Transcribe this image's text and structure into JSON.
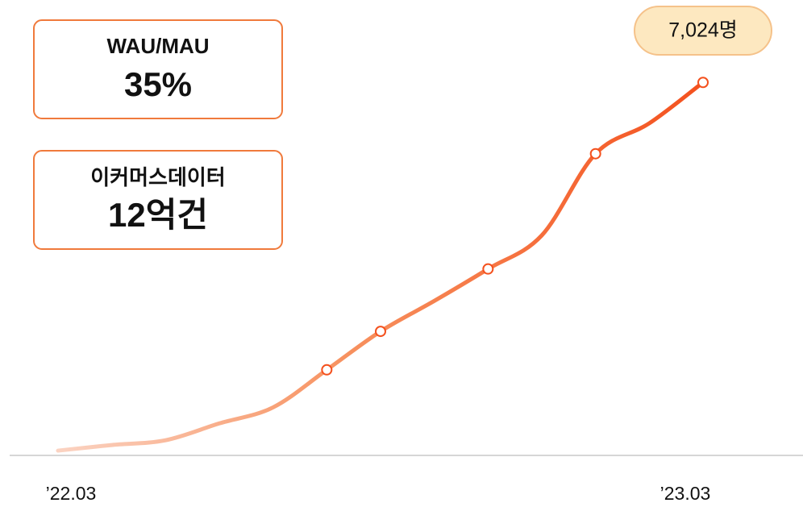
{
  "cards": [
    {
      "label": "WAU/MAU",
      "value": "35%"
    },
    {
      "label": "이커머스데이터",
      "value": "12억건"
    }
  ],
  "chart_data": {
    "type": "line",
    "categories": [
      "’22.03",
      null,
      null,
      null,
      null,
      null,
      null,
      null,
      null,
      null,
      null,
      null,
      "’23.03"
    ],
    "series": [
      {
        "name": null,
        "color": "#f4511e",
        "values": [
          90,
          196,
          286,
          603,
          904,
          1612,
          2336,
          2909,
          3511,
          4144,
          5681,
          6254,
          7024
        ],
        "value_labels": [
          null,
          null,
          null,
          null,
          null,
          null,
          null,
          null,
          null,
          null,
          null,
          null,
          "7,024명"
        ]
      }
    ],
    "ylim": [
      0,
      8500
    ]
  }
}
